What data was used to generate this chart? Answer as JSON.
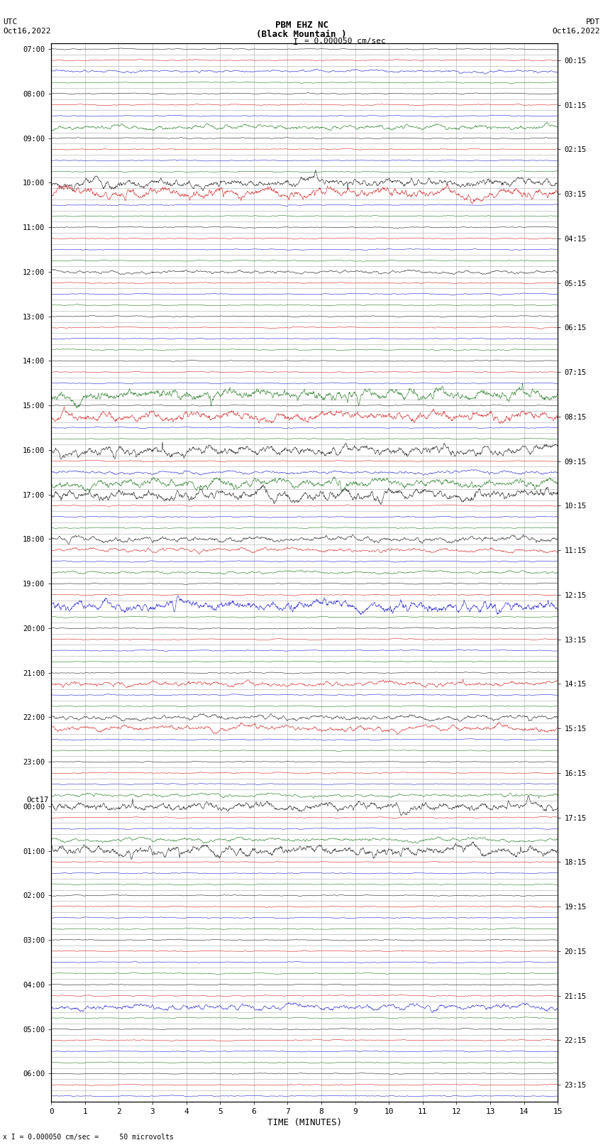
{
  "title_line1": "PBM EHZ NC",
  "title_line2": "(Black Mountain )",
  "scale_text": "I = 0.000050 cm/sec",
  "left_header_line1": "UTC",
  "left_header_line2": "Oct16,2022",
  "right_header_line1": "PDT",
  "right_header_line2": "Oct16,2022",
  "xlabel": "TIME (MINUTES)",
  "bottom_label": "x I = 0.000050 cm/sec =     50 microvolts",
  "xmin": 0,
  "xmax": 15,
  "noise_seed": 42,
  "background_color": "#ffffff",
  "grid_color": "#aaaaaa",
  "fig_width": 8.5,
  "fig_height": 16.13,
  "n_traces": 95,
  "samples_per_trace": 1800,
  "trace_colors": [
    "#000000",
    "#cc0000",
    "#0000cc",
    "#006600"
  ],
  "base_amplitude": 0.03,
  "strong_amplitude_factor": 8.0
}
